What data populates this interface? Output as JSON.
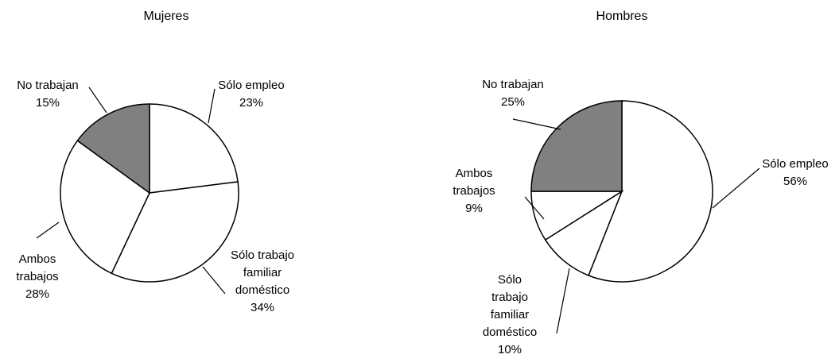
{
  "chart_data": [
    {
      "type": "pie",
      "title": "Mujeres",
      "categories": [
        "Sólo empleo",
        "Sólo trabajo familiar doméstico",
        "Ambos trabajos",
        "No trabajan"
      ],
      "values": [
        23,
        34,
        28,
        15
      ],
      "value_labels": [
        "23%",
        "34%",
        "28%",
        "15%"
      ],
      "colors": [
        "#ffffff",
        "#ffffff",
        "#ffffff",
        "#808080"
      ]
    },
    {
      "type": "pie",
      "title": "Hombres",
      "categories": [
        "Sólo empleo",
        "Sólo trabajo familiar doméstico",
        "Ambos trabajos",
        "No trabajan"
      ],
      "values": [
        56,
        10,
        9,
        25
      ],
      "value_labels": [
        "56%",
        "10%",
        "9%",
        "25%"
      ],
      "colors": [
        "#ffffff",
        "#ffffff",
        "#ffffff",
        "#808080"
      ]
    }
  ]
}
